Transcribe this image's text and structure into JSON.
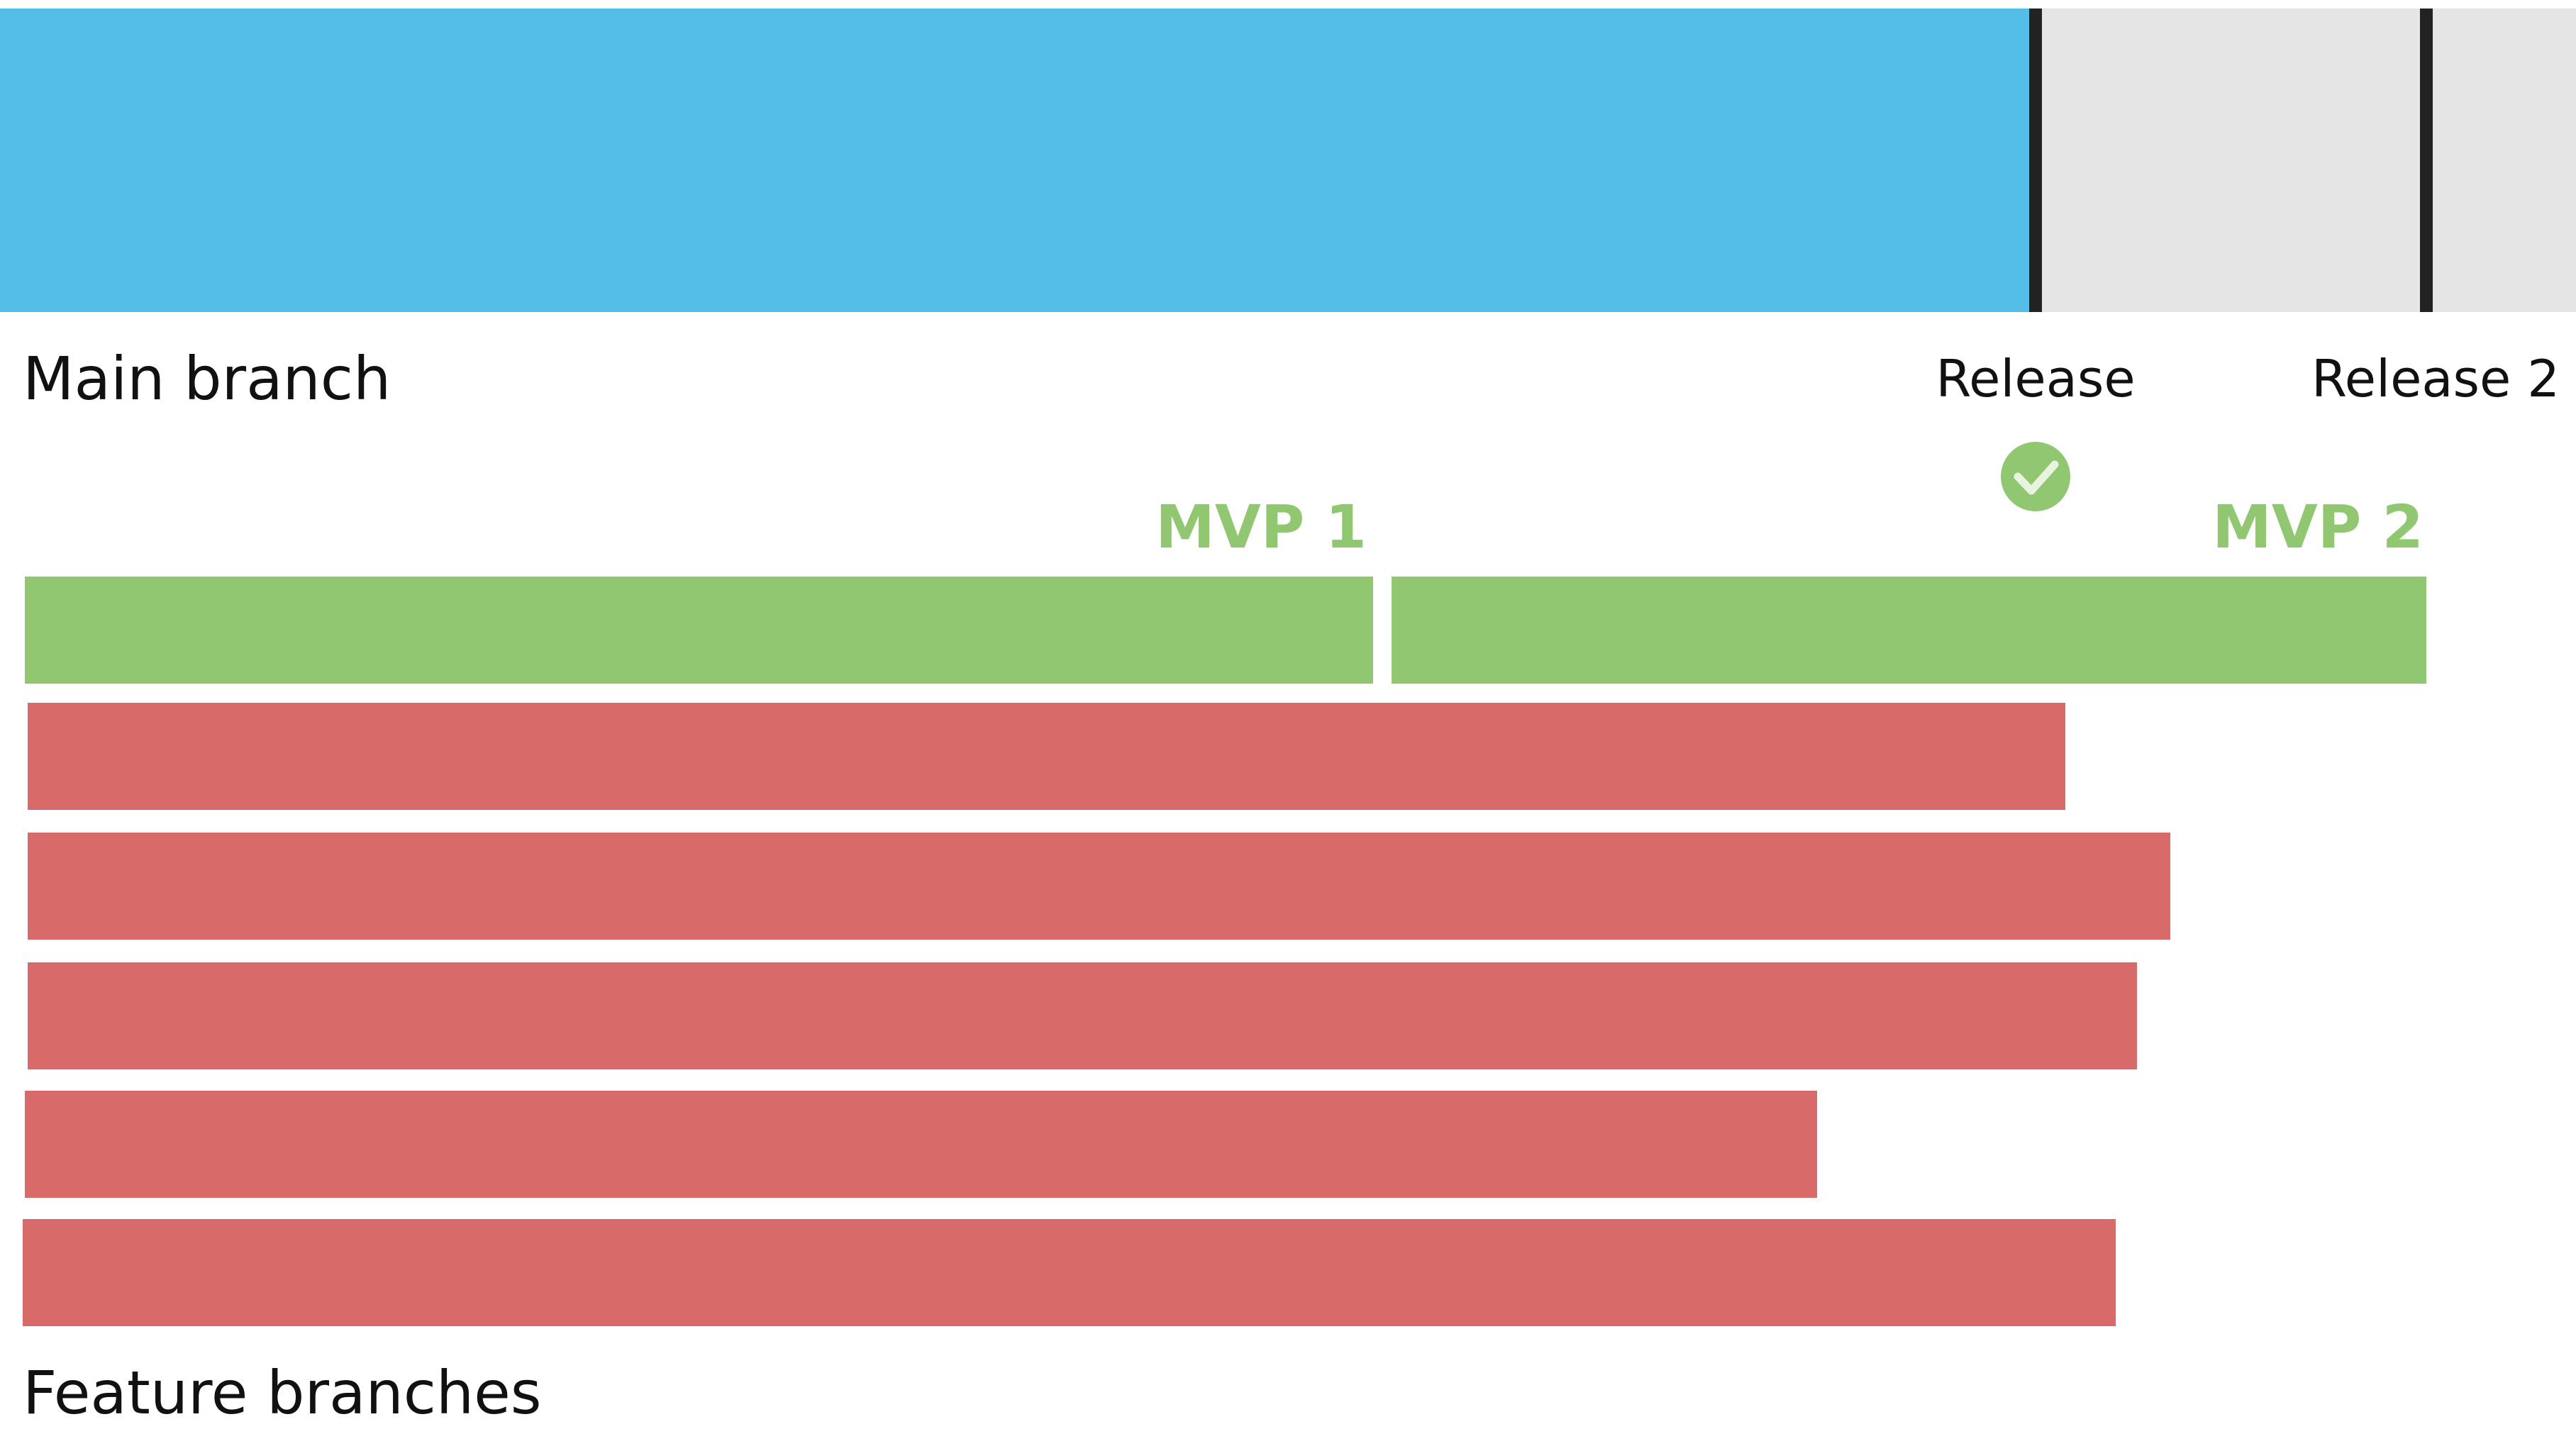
{
  "main": {
    "label": "Main branch",
    "releases": [
      "Release",
      "Release 2"
    ]
  },
  "mvps": [
    "MVP 1",
    "MVP 2"
  ],
  "features": {
    "label": "Feature branches"
  }
}
